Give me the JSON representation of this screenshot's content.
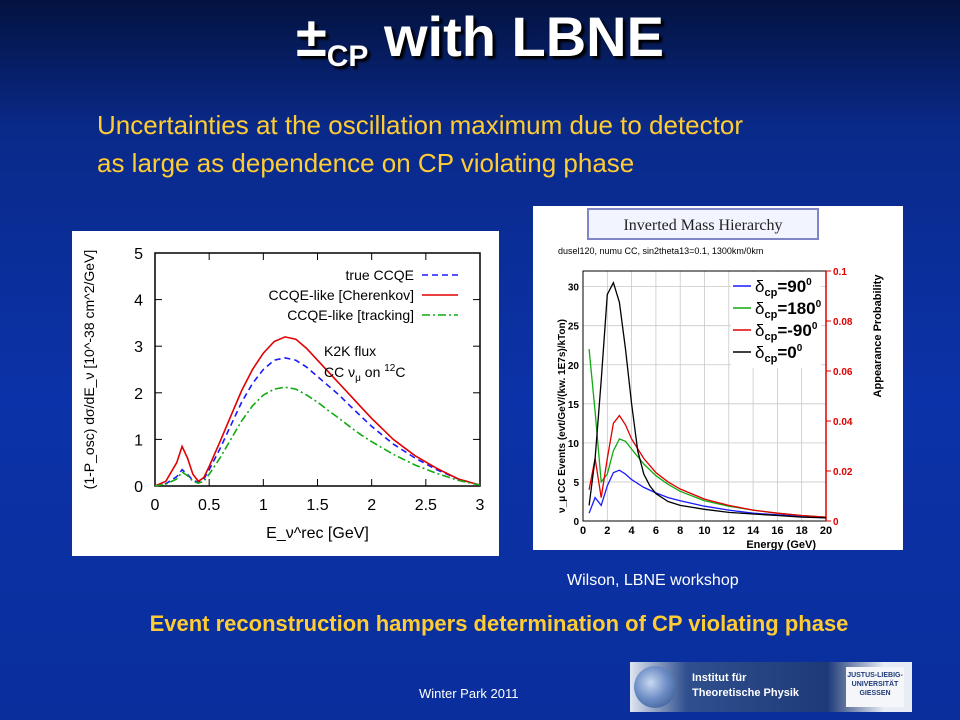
{
  "slide": {
    "title_main": "±",
    "title_sub": "CP",
    "title_rest": " with LBNE",
    "subtitle_line1": "Uncertainties at the oscillation maximum due to detector",
    "subtitle_line2": "as large as dependence on CP violating phase",
    "credit": "Wilson, LBNE workshop",
    "conclusion": "Event reconstruction hampers determination of CP violating phase",
    "footer": "Winter Park 2011",
    "logo_text_line1": "Institut für",
    "logo_text_line2": "Theoretische Physik",
    "logo_uni_line1": "JUSTUS-LIEBIG-",
    "logo_uni_line2": "UNIVERSITÄT",
    "logo_uni_line3": "GIESSEN"
  },
  "chart_data": [
    {
      "type": "line",
      "title": "",
      "xlabel": "E_ν^rec [GeV]",
      "ylabel": "(1-P_osc) dσ/dE_ν [10^-38 cm^2/GeV]",
      "xlim": [
        0,
        3
      ],
      "ylim": [
        0,
        5
      ],
      "xticks": [
        "0",
        "0.5",
        "1",
        "1.5",
        "2",
        "2.5",
        "3"
      ],
      "yticks": [
        "0",
        "1",
        "2",
        "3",
        "4",
        "5"
      ],
      "legend_position": "top-right",
      "annotation_line1": "K2K flux",
      "annotation_line2": "CC ν",
      "annotation_sub": "μ",
      "annotation_tail": " on ",
      "annotation_sup": "12",
      "annotation_end": "C",
      "series": [
        {
          "name": "true CCQE",
          "color": "#1a1aff",
          "dash": "6,4",
          "x": [
            0,
            0.1,
            0.2,
            0.25,
            0.3,
            0.35,
            0.4,
            0.45,
            0.5,
            0.6,
            0.7,
            0.8,
            0.9,
            1.0,
            1.1,
            1.2,
            1.3,
            1.4,
            1.5,
            1.6,
            1.7,
            1.8,
            1.9,
            2.0,
            2.2,
            2.4,
            2.6,
            2.8,
            3.0
          ],
          "values": [
            0,
            0.05,
            0.2,
            0.35,
            0.25,
            0.12,
            0.08,
            0.15,
            0.35,
            0.8,
            1.3,
            1.8,
            2.2,
            2.5,
            2.7,
            2.75,
            2.7,
            2.55,
            2.35,
            2.15,
            1.95,
            1.72,
            1.5,
            1.28,
            0.9,
            0.6,
            0.35,
            0.15,
            0.02
          ]
        },
        {
          "name": "CCQE-like [Cherenkov]",
          "color": "#e00000",
          "dash": "",
          "x": [
            0,
            0.1,
            0.2,
            0.25,
            0.3,
            0.35,
            0.4,
            0.45,
            0.5,
            0.6,
            0.7,
            0.8,
            0.9,
            1.0,
            1.1,
            1.2,
            1.3,
            1.4,
            1.5,
            1.6,
            1.7,
            1.8,
            1.9,
            2.0,
            2.2,
            2.4,
            2.6,
            2.8,
            3.0
          ],
          "values": [
            0,
            0.1,
            0.5,
            0.85,
            0.6,
            0.25,
            0.1,
            0.18,
            0.42,
            0.95,
            1.5,
            2.05,
            2.5,
            2.85,
            3.1,
            3.2,
            3.15,
            2.95,
            2.7,
            2.45,
            2.2,
            1.95,
            1.7,
            1.45,
            1.0,
            0.65,
            0.38,
            0.15,
            0.02
          ]
        },
        {
          "name": "CCQE-like [tracking]",
          "color": "#11aa11",
          "dash": "8,3,2,3",
          "x": [
            0,
            0.1,
            0.2,
            0.25,
            0.3,
            0.35,
            0.4,
            0.45,
            0.5,
            0.6,
            0.7,
            0.8,
            0.9,
            1.0,
            1.1,
            1.2,
            1.3,
            1.4,
            1.5,
            1.6,
            1.7,
            1.8,
            1.9,
            2.0,
            2.2,
            2.4,
            2.6,
            2.8,
            3.0
          ],
          "values": [
            0,
            0.04,
            0.15,
            0.3,
            0.22,
            0.1,
            0.06,
            0.1,
            0.25,
            0.6,
            1.0,
            1.4,
            1.72,
            1.95,
            2.08,
            2.12,
            2.08,
            1.95,
            1.8,
            1.62,
            1.45,
            1.27,
            1.1,
            0.95,
            0.68,
            0.45,
            0.27,
            0.12,
            0.02
          ]
        }
      ]
    },
    {
      "type": "line",
      "title": "Inverted Mass Hierarchy",
      "subtitle": "dusel120, numu CC, sin2theta13=0.1, 1300km/0km",
      "xlabel": "Energy (GeV)",
      "ylabel": "ν_μ CC Events (evt/GeV/(kw. 1E7s)/kTon)",
      "ylabel_right": "Appearance Probability",
      "xlim": [
        0,
        20
      ],
      "ylim": [
        0,
        32
      ],
      "ylim_right": [
        0,
        0.1
      ],
      "xticks": [
        "0",
        "2",
        "4",
        "6",
        "8",
        "10",
        "12",
        "14",
        "16",
        "18",
        "20"
      ],
      "yticks": [
        "0",
        "5",
        "10",
        "15",
        "20",
        "25",
        "30"
      ],
      "yticks_right": [
        "0",
        "0.02",
        "0.04",
        "0.06",
        "0.08",
        "0.1"
      ],
      "legend": [
        {
          "label": "δ",
          "sub": "cp",
          "value": "=90",
          "sup": "0",
          "color": "#1a1aff"
        },
        {
          "label": "δ",
          "sub": "cp",
          "value": "=180",
          "sup": "0",
          "color": "#11aa11"
        },
        {
          "label": "δ",
          "sub": "cp",
          "value": "=-90",
          "sup": "0",
          "color": "#e00000"
        },
        {
          "label": "δ",
          "sub": "cp",
          "value": "=0",
          "sup": "0",
          "color": "#000000"
        }
      ],
      "series": [
        {
          "name": "δcp=90°",
          "color": "#1a1aff",
          "x": [
            0.5,
            1,
            1.5,
            2,
            2.5,
            3,
            3.5,
            4,
            5,
            6,
            7,
            8,
            10,
            12,
            14,
            16,
            18,
            20
          ],
          "values": [
            1,
            3,
            2,
            4.5,
            6.2,
            6.5,
            6.0,
            5.3,
            4.3,
            3.6,
            3.0,
            2.6,
            1.9,
            1.4,
            1.0,
            0.8,
            0.6,
            0.4
          ]
        },
        {
          "name": "δcp=180°",
          "color": "#11aa11",
          "x": [
            0.5,
            1,
            1.5,
            2,
            2.5,
            3,
            3.5,
            4,
            5,
            6,
            7,
            8,
            10,
            12,
            14,
            16,
            18,
            20
          ],
          "values": [
            22,
            14,
            5,
            6,
            9,
            10.5,
            10.2,
            9.2,
            7.3,
            5.8,
            4.7,
            3.8,
            2.6,
            1.9,
            1.4,
            1.0,
            0.7,
            0.5
          ]
        },
        {
          "name": "δcp=-90°",
          "color": "#e00000",
          "x": [
            0.5,
            1,
            1.5,
            2,
            2.5,
            3,
            3.5,
            4,
            5,
            6,
            7,
            8,
            10,
            12,
            14,
            16,
            18,
            20
          ],
          "values": [
            4,
            8,
            3,
            8,
            12.5,
            13.5,
            12.3,
            10.5,
            8.0,
            6.2,
            5.0,
            4.1,
            2.8,
            2.0,
            1.4,
            1.0,
            0.7,
            0.5
          ]
        },
        {
          "name": "δcp=0°",
          "color": "#000000",
          "x": [
            0.5,
            1,
            1.5,
            2,
            2.5,
            3,
            3.5,
            4,
            4.5,
            5,
            5.5,
            6,
            7,
            8,
            10,
            12,
            14,
            16,
            18,
            20
          ],
          "values": [
            2,
            8,
            18,
            29,
            30.5,
            28,
            22,
            15,
            9,
            6,
            4.5,
            3.5,
            2.5,
            2.0,
            1.5,
            1.1,
            0.9,
            0.7,
            0.5,
            0.4
          ]
        }
      ]
    }
  ]
}
